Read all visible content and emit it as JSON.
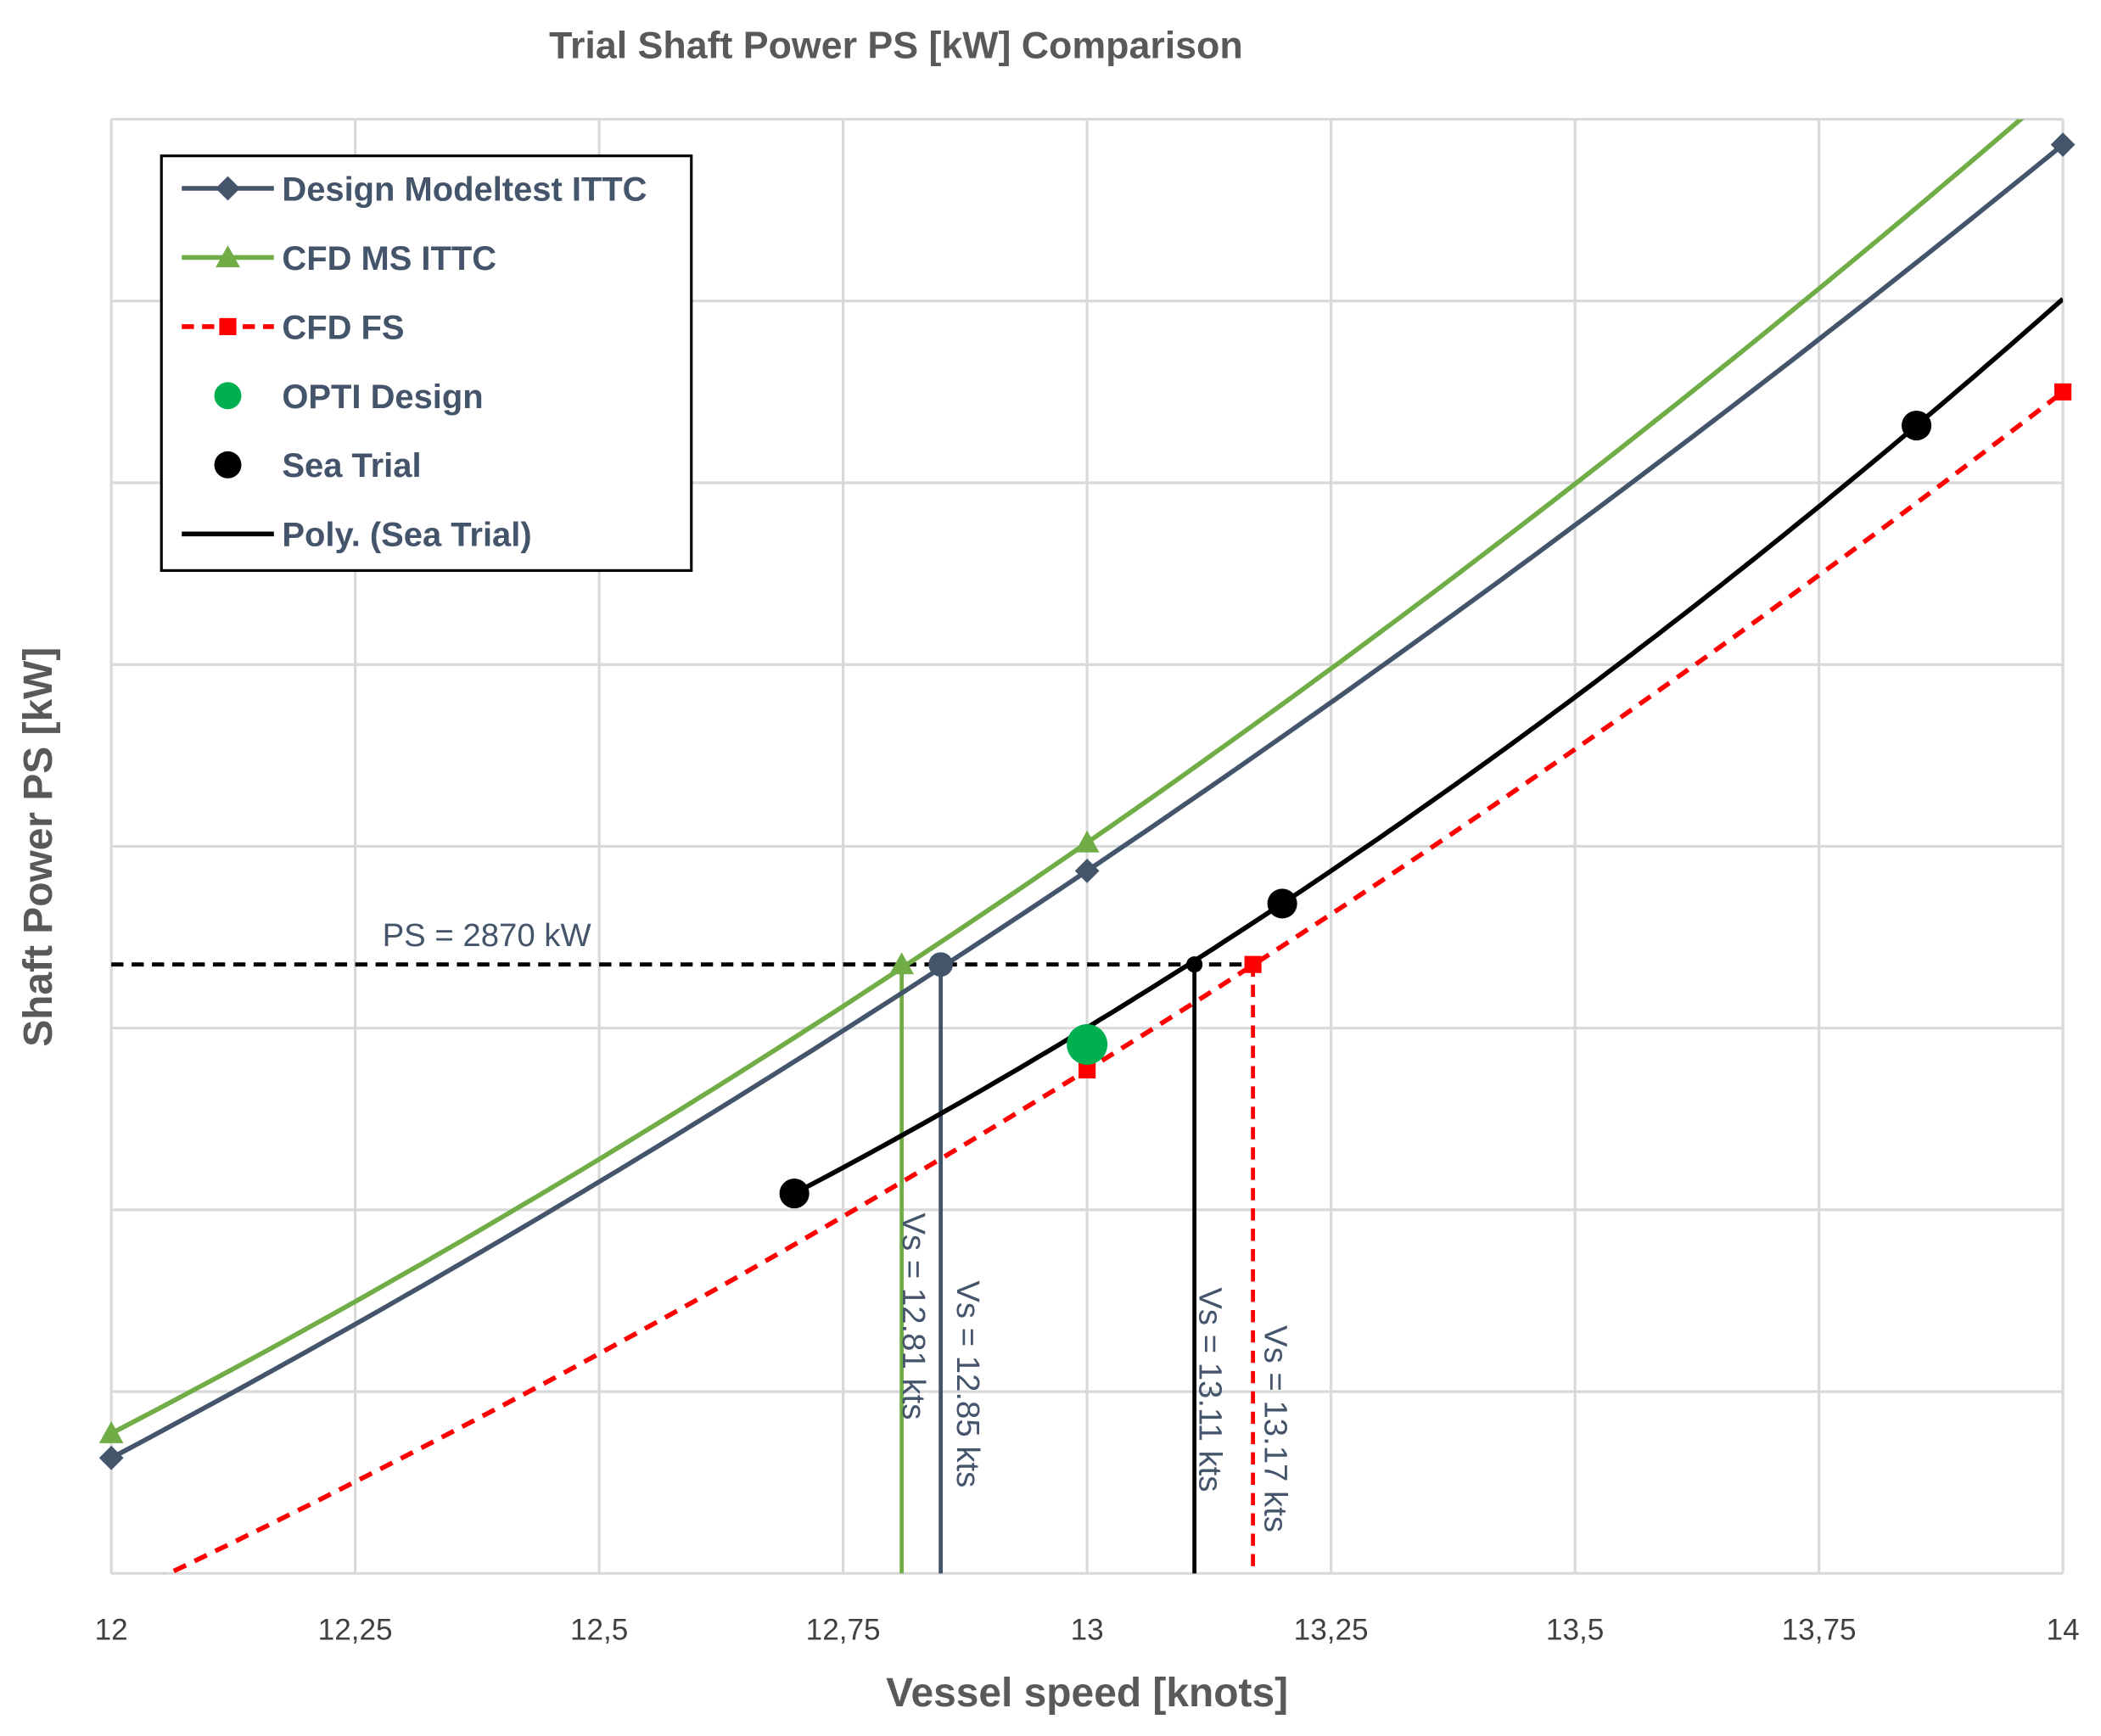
{
  "chart_data": {
    "type": "line",
    "title": "Trial Shaft Power PS [kW] Comparison",
    "xlabel": "Vessel speed [knots]",
    "ylabel": "Shaft Power PS [kW]",
    "xlim": [
      12,
      14
    ],
    "ylim": [
      2200,
      3800
    ],
    "y_grid_step": 200,
    "y_tick_labels_shown": false,
    "grid": true,
    "legend_position": "top-left",
    "x_ticks": [
      12,
      12.25,
      12.5,
      12.75,
      13,
      13.25,
      13.5,
      13.75,
      14
    ],
    "x_tick_labels": [
      "12",
      "12,25",
      "12,5",
      "12,75",
      "13",
      "13,25",
      "13,5",
      "13,75",
      "14"
    ],
    "series": [
      {
        "name": "Design Modeltest ITTC",
        "color": "#44546a",
        "marker": "diamond",
        "dash": false,
        "x": [
          12,
          13,
          14
        ],
        "y": [
          2327,
          2973,
          3772
        ]
      },
      {
        "name": "CFD MS ITTC",
        "color": "#70ad47",
        "marker": "triangle",
        "dash": false,
        "x": [
          12,
          13,
          14
        ],
        "y": [
          2354,
          3004,
          3840
        ]
      },
      {
        "name": "CFD FS",
        "color": "#ff0000",
        "marker": "square",
        "dash": true,
        "x": [
          12,
          13,
          14
        ],
        "y": [
          2170,
          2754,
          3500
        ]
      },
      {
        "name": "OPTI Design",
        "color": "#00b050",
        "marker": "circle",
        "line": false,
        "x": [
          13.0
        ],
        "y": [
          2782
        ]
      },
      {
        "name": "Sea Trial",
        "color": "#000000",
        "marker": "circle",
        "line": false,
        "x": [
          12.7,
          13.2,
          13.85
        ],
        "y": [
          2618,
          2937,
          3463
        ]
      },
      {
        "name": "Poly. (Sea Trial)",
        "color": "#000000",
        "marker": "none",
        "trendline_of": "Sea Trial",
        "order": 2,
        "x_range": [
          12.7,
          14
        ]
      }
    ],
    "reference_line": {
      "y": 2870,
      "label": "PS = 2870 kW",
      "color": "#000000"
    },
    "crossings": [
      {
        "x": 12.81,
        "y": 2870,
        "color": "#70ad47",
        "marker": "triangle",
        "dash": false,
        "label": "Vs = 12.81 kts"
      },
      {
        "x": 12.85,
        "y": 2870,
        "color": "#44546a",
        "marker": "circle",
        "dash": false,
        "label": "Vs = 12.85 kts"
      },
      {
        "x": 13.11,
        "y": 2870,
        "color": "#000000",
        "marker": "circle",
        "dash": false,
        "label": "Vs = 13.11 kts"
      },
      {
        "x": 13.17,
        "y": 2870,
        "color": "#ff0000",
        "marker": "square",
        "dash": true,
        "label": "Vs = 13.17 kts"
      }
    ]
  }
}
